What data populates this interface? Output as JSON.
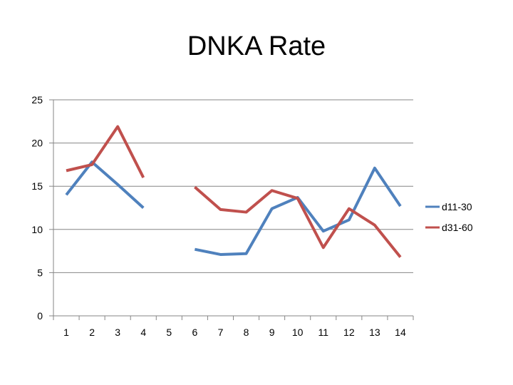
{
  "chart_data": {
    "type": "line",
    "title": "DNKA Rate",
    "xlabel": "",
    "ylabel": "",
    "categories": [
      "1",
      "2",
      "3",
      "4",
      "5",
      "6",
      "7",
      "8",
      "9",
      "10",
      "11",
      "12",
      "13",
      "14"
    ],
    "ylim": [
      0,
      25
    ],
    "yticks": [
      0,
      5,
      10,
      15,
      20,
      25
    ],
    "grid": true,
    "legend": "right",
    "series": [
      {
        "name": "d11-30",
        "color": "#4f81bd",
        "values": [
          14.0,
          17.8,
          15.2,
          12.5,
          null,
          7.7,
          7.1,
          7.2,
          12.4,
          13.7,
          9.8,
          11.1,
          17.1,
          12.7
        ]
      },
      {
        "name": "d31-60",
        "color": "#c0504d",
        "values": [
          16.8,
          17.5,
          21.9,
          16.0,
          null,
          14.9,
          12.3,
          12.0,
          14.5,
          13.6,
          7.9,
          12.4,
          10.5,
          6.8
        ]
      }
    ]
  }
}
